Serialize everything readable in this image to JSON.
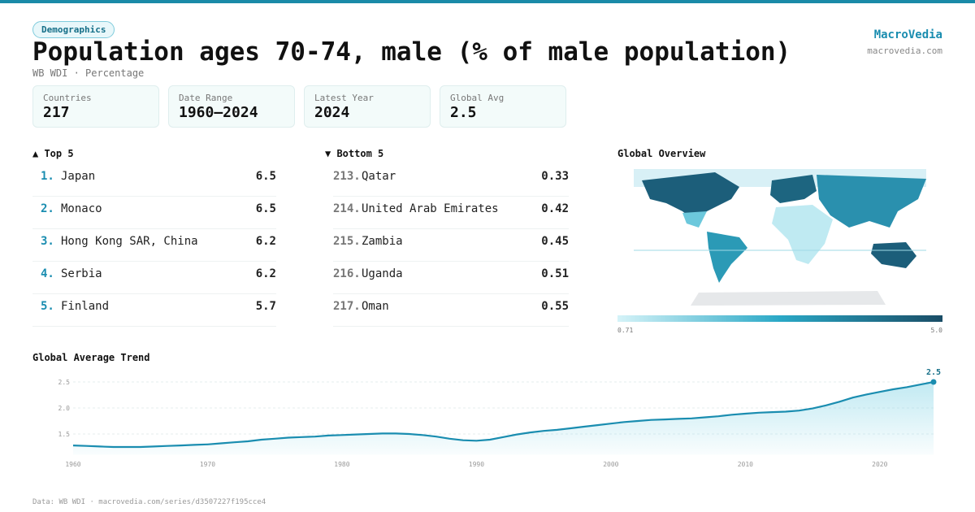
{
  "header": {
    "badge": "Demographics",
    "title": "Population ages 70-74, male (% of male population)",
    "subtitle": "WB WDI · Percentage",
    "brand": "MacroVedia",
    "site": "macrovedia.com"
  },
  "stats": [
    {
      "label": "Countries",
      "value": 217
    },
    {
      "label": "Date Range",
      "value": "1960–2024"
    },
    {
      "label": "Latest Year",
      "value": 2024
    },
    {
      "label": "Global Avg",
      "value": 2.5
    }
  ],
  "top": {
    "title": "▲ Top 5",
    "rows": [
      {
        "rank": "1.",
        "name": "Japan",
        "value": 6.5
      },
      {
        "rank": "2.",
        "name": "Monaco",
        "value": 6.5
      },
      {
        "rank": "3.",
        "name": "Hong Kong SAR, China",
        "value": 6.2
      },
      {
        "rank": "4.",
        "name": "Serbia",
        "value": 6.2
      },
      {
        "rank": "5.",
        "name": "Finland",
        "value": 5.7
      }
    ]
  },
  "bottom": {
    "title": "▼ Bottom 5",
    "rows": [
      {
        "rank": "213.",
        "name": "Qatar",
        "value": 0.33
      },
      {
        "rank": "214.",
        "name": "United Arab Emirates",
        "value": 0.42
      },
      {
        "rank": "215.",
        "name": "Zambia",
        "value": 0.45
      },
      {
        "rank": "216.",
        "name": "Uganda",
        "value": 0.51
      },
      {
        "rank": "217.",
        "name": "Oman",
        "value": 0.55
      }
    ]
  },
  "map": {
    "title": "Global Overview",
    "legend_min": "0.71",
    "legend_max": "5.0"
  },
  "chart_data": {
    "type": "line",
    "title": "Global Average Trend",
    "x": [
      1960,
      1961,
      1962,
      1963,
      1964,
      1965,
      1966,
      1967,
      1968,
      1969,
      1970,
      1971,
      1972,
      1973,
      1974,
      1975,
      1976,
      1977,
      1978,
      1979,
      1980,
      1981,
      1982,
      1983,
      1984,
      1985,
      1986,
      1987,
      1988,
      1989,
      1990,
      1991,
      1992,
      1993,
      1994,
      1995,
      1996,
      1997,
      1998,
      1999,
      2000,
      2001,
      2002,
      2003,
      2004,
      2005,
      2006,
      2007,
      2008,
      2009,
      2010,
      2011,
      2012,
      2013,
      2014,
      2015,
      2016,
      2017,
      2018,
      2019,
      2020,
      2021,
      2022,
      2023,
      2024
    ],
    "values": [
      1.28,
      1.27,
      1.26,
      1.25,
      1.25,
      1.25,
      1.26,
      1.27,
      1.28,
      1.29,
      1.3,
      1.32,
      1.34,
      1.36,
      1.39,
      1.41,
      1.43,
      1.44,
      1.45,
      1.47,
      1.48,
      1.49,
      1.5,
      1.51,
      1.51,
      1.5,
      1.48,
      1.45,
      1.41,
      1.38,
      1.37,
      1.39,
      1.44,
      1.49,
      1.53,
      1.56,
      1.58,
      1.61,
      1.64,
      1.67,
      1.7,
      1.73,
      1.75,
      1.77,
      1.78,
      1.79,
      1.8,
      1.82,
      1.84,
      1.87,
      1.89,
      1.91,
      1.92,
      1.93,
      1.95,
      1.99,
      2.05,
      2.12,
      2.2,
      2.26,
      2.31,
      2.36,
      2.4,
      2.45,
      2.5
    ],
    "color": "#1a8db0",
    "xlim": [
      1960,
      2024
    ],
    "ylim": [
      1.1,
      2.7
    ],
    "xticks": [
      1960,
      1970,
      1980,
      1990,
      2000,
      2010,
      2020
    ],
    "yticks": [
      1.5,
      {
        "value": 2,
        "label": "2.0"
      },
      2.5
    ],
    "grid": true
  },
  "footer": "Data: WB WDI · macrovedia.com/series/d3507227f195cce4"
}
